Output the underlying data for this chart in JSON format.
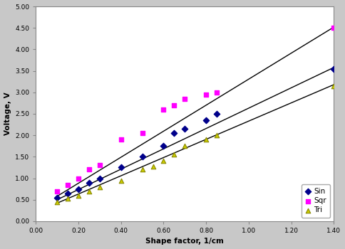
{
  "sin_x": [
    0.1,
    0.15,
    0.2,
    0.25,
    0.3,
    0.4,
    0.5,
    0.6,
    0.65,
    0.7,
    0.8,
    0.85,
    1.4
  ],
  "sin_y": [
    0.55,
    0.65,
    0.75,
    0.9,
    1.0,
    1.25,
    1.5,
    1.75,
    2.05,
    2.15,
    2.35,
    2.5,
    3.55
  ],
  "sqr_x": [
    0.1,
    0.15,
    0.2,
    0.25,
    0.3,
    0.4,
    0.5,
    0.6,
    0.65,
    0.7,
    0.8,
    0.85,
    1.4
  ],
  "sqr_y": [
    0.7,
    0.85,
    1.0,
    1.2,
    1.3,
    1.9,
    2.05,
    2.6,
    2.7,
    2.85,
    2.95,
    3.0,
    4.5
  ],
  "tri_x": [
    0.1,
    0.15,
    0.2,
    0.25,
    0.3,
    0.4,
    0.5,
    0.55,
    0.6,
    0.65,
    0.7,
    0.8,
    0.85,
    1.4
  ],
  "tri_y": [
    0.45,
    0.52,
    0.6,
    0.7,
    0.8,
    0.95,
    1.2,
    1.28,
    1.4,
    1.55,
    1.75,
    1.9,
    2.0,
    3.15
  ],
  "sin_line_x": [
    0.1,
    1.4
  ],
  "sin_line_y": [
    0.5,
    3.58
  ],
  "sqr_line_x": [
    0.1,
    1.4
  ],
  "sqr_line_y": [
    0.58,
    4.52
  ],
  "tri_line_x": [
    0.1,
    1.4
  ],
  "tri_line_y": [
    0.42,
    3.18
  ],
  "xlabel": "Shape factor, 1/cm",
  "ylabel": "Voltage, V",
  "xlim": [
    0.0,
    1.4
  ],
  "ylim": [
    0.0,
    5.0
  ],
  "xticks": [
    0.0,
    0.2,
    0.4,
    0.6,
    0.8,
    1.0,
    1.2,
    1.4
  ],
  "yticks": [
    0.0,
    0.5,
    1.0,
    1.5,
    2.0,
    2.5,
    3.0,
    3.5,
    4.0,
    4.5,
    5.0
  ],
  "sin_color": "#00008B",
  "sqr_color": "#FF00FF",
  "tri_color": "#CCCC00",
  "tri_edge_color": "#888800",
  "line_color": "#000000",
  "plot_bg_color": "#FFFFFF",
  "fig_bg_color": "#C8C8C8"
}
